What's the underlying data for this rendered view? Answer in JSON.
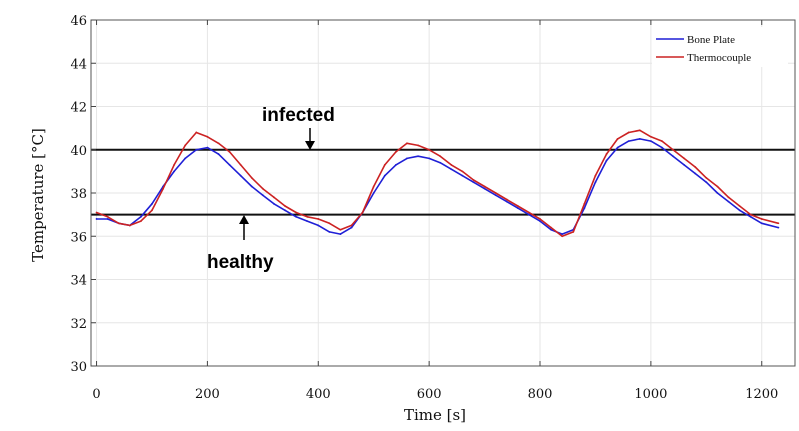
{
  "chart_data": {
    "type": "line",
    "title": "",
    "xlabel": "Time [s]",
    "ylabel": "Temperature [°C]",
    "xlim": [
      -10,
      1260
    ],
    "ylim": [
      30,
      46
    ],
    "xticks": [
      0,
      200,
      400,
      600,
      800,
      1000,
      1200
    ],
    "yticks": [
      30,
      32,
      34,
      36,
      38,
      40,
      42,
      44,
      46
    ],
    "grid": true,
    "legend_position": "top-right",
    "series": [
      {
        "name": "Bone Plate",
        "color": "#1f1fd6",
        "x": [
          0,
          20,
          40,
          60,
          80,
          100,
          120,
          140,
          160,
          180,
          200,
          220,
          240,
          260,
          280,
          300,
          320,
          340,
          360,
          380,
          400,
          420,
          440,
          460,
          480,
          500,
          520,
          540,
          560,
          580,
          600,
          620,
          640,
          660,
          680,
          700,
          720,
          740,
          760,
          780,
          800,
          820,
          840,
          860,
          880,
          900,
          920,
          940,
          960,
          980,
          1000,
          1020,
          1040,
          1060,
          1080,
          1100,
          1120,
          1140,
          1160,
          1180,
          1200,
          1230
        ],
        "y": [
          36.8,
          36.8,
          36.6,
          36.5,
          36.9,
          37.5,
          38.3,
          39.0,
          39.6,
          40.0,
          40.1,
          39.8,
          39.3,
          38.8,
          38.3,
          37.9,
          37.5,
          37.2,
          36.9,
          36.7,
          36.5,
          36.2,
          36.1,
          36.4,
          37.1,
          38.0,
          38.8,
          39.3,
          39.6,
          39.7,
          39.6,
          39.4,
          39.1,
          38.8,
          38.5,
          38.2,
          37.9,
          37.6,
          37.3,
          37.0,
          36.7,
          36.3,
          36.1,
          36.3,
          37.3,
          38.5,
          39.5,
          40.1,
          40.4,
          40.5,
          40.4,
          40.1,
          39.7,
          39.3,
          38.9,
          38.5,
          38.0,
          37.6,
          37.2,
          36.9,
          36.6,
          36.4
        ]
      },
      {
        "name": "Thermocouple",
        "color": "#cc2222",
        "x": [
          0,
          20,
          40,
          60,
          80,
          100,
          120,
          140,
          160,
          180,
          200,
          220,
          240,
          260,
          280,
          300,
          320,
          340,
          360,
          380,
          400,
          420,
          440,
          460,
          480,
          500,
          520,
          540,
          560,
          580,
          600,
          620,
          640,
          660,
          680,
          700,
          720,
          740,
          760,
          780,
          800,
          820,
          840,
          860,
          880,
          900,
          920,
          940,
          960,
          980,
          1000,
          1020,
          1040,
          1060,
          1080,
          1100,
          1120,
          1140,
          1160,
          1180,
          1200,
          1230
        ],
        "y": [
          37.1,
          36.9,
          36.6,
          36.5,
          36.7,
          37.2,
          38.2,
          39.3,
          40.2,
          40.8,
          40.6,
          40.3,
          39.9,
          39.3,
          38.7,
          38.2,
          37.8,
          37.4,
          37.1,
          36.9,
          36.8,
          36.6,
          36.3,
          36.5,
          37.1,
          38.3,
          39.3,
          39.9,
          40.3,
          40.2,
          40.0,
          39.7,
          39.3,
          39.0,
          38.6,
          38.3,
          38.0,
          37.7,
          37.4,
          37.1,
          36.8,
          36.4,
          36.0,
          36.2,
          37.5,
          38.8,
          39.8,
          40.5,
          40.8,
          40.9,
          40.6,
          40.4,
          40.0,
          39.6,
          39.2,
          38.7,
          38.3,
          37.8,
          37.4,
          37.0,
          36.8,
          36.6
        ]
      }
    ],
    "reference_lines": [
      {
        "y": 40,
        "label": "infected"
      },
      {
        "y": 37,
        "label": "healthy"
      }
    ]
  },
  "annotations": {
    "infected": "infected",
    "healthy": "healthy"
  },
  "legend": {
    "items": [
      "Bone Plate",
      "Thermocouple"
    ]
  },
  "axes": {
    "xlabel": "Time [s]",
    "ylabel": "Temperature [°C]"
  }
}
